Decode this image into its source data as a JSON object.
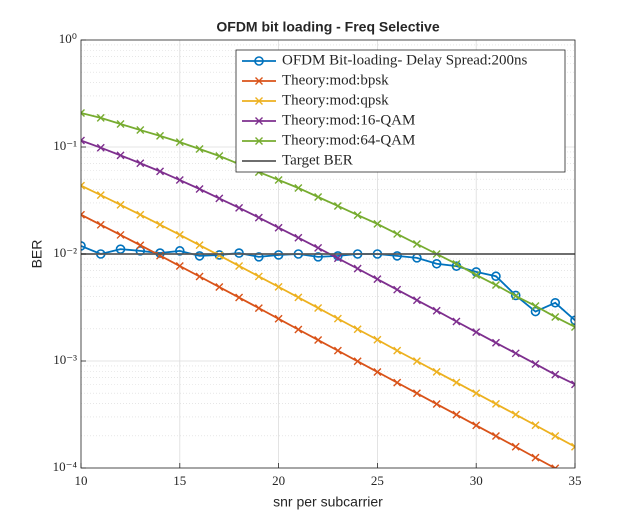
{
  "chart_data": {
    "type": "line",
    "title": "OFDM bit loading -  Freq Selective",
    "x_label": "snr per subcarrier",
    "y_label": "BER",
    "x": [
      10,
      11,
      12,
      13,
      14,
      15,
      16,
      17,
      18,
      19,
      20,
      21,
      22,
      23,
      24,
      25,
      26,
      27,
      28,
      29,
      30,
      31,
      32,
      33,
      34,
      35
    ],
    "xlim": [
      10,
      35
    ],
    "xticks": [
      10,
      15,
      20,
      25,
      30,
      35
    ],
    "ylim": [
      0.0001,
      1
    ],
    "log_y": true,
    "grid": true,
    "minor_grid": true,
    "legend": "northeast",
    "yticks": [
      {
        "value": 0.0001,
        "label": "10⁻⁴"
      },
      {
        "value": 0.001,
        "label": "10⁻³"
      },
      {
        "value": 0.01,
        "label": "10⁻²"
      },
      {
        "value": 0.1,
        "label": "10⁻¹"
      },
      {
        "value": 1,
        "label": "10⁰"
      }
    ],
    "series": [
      {
        "name": "OFDM Bit-loading- Delay Spread:200ns",
        "color": "#0072bd",
        "marker": "o",
        "values": [
          0.0119,
          0.01,
          0.0111,
          0.0107,
          0.0102,
          0.0107,
          0.0096,
          0.0098,
          0.0102,
          0.0094,
          0.0098,
          0.01,
          0.0094,
          0.0096,
          0.01,
          0.01,
          0.0096,
          0.0092,
          0.0081,
          0.0077,
          0.0068,
          0.0062,
          0.0041,
          0.0029,
          0.0035,
          0.0024
        ]
      },
      {
        "name": "Theory:mod:bpsk",
        "color": "#d95319",
        "marker": "x",
        "values": [
          0.0233,
          0.01874,
          0.01507,
          0.01208,
          0.00966,
          0.00772,
          0.00616,
          0.00491,
          0.00392,
          0.00312,
          0.00248,
          0.00197,
          0.00157,
          0.00125,
          0.000994,
          0.00079,
          0.000628,
          0.000499,
          0.000396,
          0.000315,
          0.00025,
          0.000199,
          0.000158,
          0.000125,
          9.95e-05,
          7.91e-05
        ]
      },
      {
        "name": "Theory:mod:qpsk",
        "color": "#edb120",
        "marker": "x",
        "values": [
          0.0436,
          0.0355,
          0.0288,
          0.0233,
          0.0188,
          0.0151,
          0.0121,
          0.00969,
          0.00773,
          0.00617,
          0.00493,
          0.00393,
          0.00313,
          0.00249,
          0.00198,
          0.00158,
          0.00125,
          0.000997,
          0.000792,
          0.00063,
          0.0005,
          0.000397,
          0.000316,
          0.000251,
          0.000199,
          0.000158
        ]
      },
      {
        "name": "Theory:mod:16-QAM",
        "color": "#7e2f8e",
        "marker": "x",
        "values": [
          0.115,
          0.0985,
          0.0835,
          0.0705,
          0.0592,
          0.0491,
          0.0405,
          0.0331,
          0.027,
          0.0219,
          0.0176,
          0.0142,
          0.0114,
          0.00912,
          0.0073,
          0.00582,
          0.00464,
          0.0037,
          0.00295,
          0.00234,
          0.00186,
          0.00148,
          0.00118,
          0.000938,
          0.000745,
          0.000605
        ]
      },
      {
        "name": "Theory:mod:64-QAM",
        "color": "#77ac30",
        "marker": "x",
        "values": [
          0.208,
          0.187,
          0.164,
          0.144,
          0.127,
          0.111,
          0.0958,
          0.0824,
          0.0693,
          0.0583,
          0.0492,
          0.0414,
          0.0341,
          0.0281,
          0.0231,
          0.0191,
          0.0154,
          0.0124,
          0.01,
          0.00807,
          0.00637,
          0.00513,
          0.00405,
          0.00327,
          0.00258,
          0.00208
        ]
      },
      {
        "name": "Target BER",
        "color": "#595959",
        "values": [
          0.01,
          0.01,
          0.01,
          0.01,
          0.01,
          0.01,
          0.01,
          0.01,
          0.01,
          0.01,
          0.01,
          0.01,
          0.01,
          0.01,
          0.01,
          0.01,
          0.01,
          0.01,
          0.01,
          0.01,
          0.01,
          0.01,
          0.01,
          0.01,
          0.01,
          0.01
        ]
      }
    ]
  }
}
